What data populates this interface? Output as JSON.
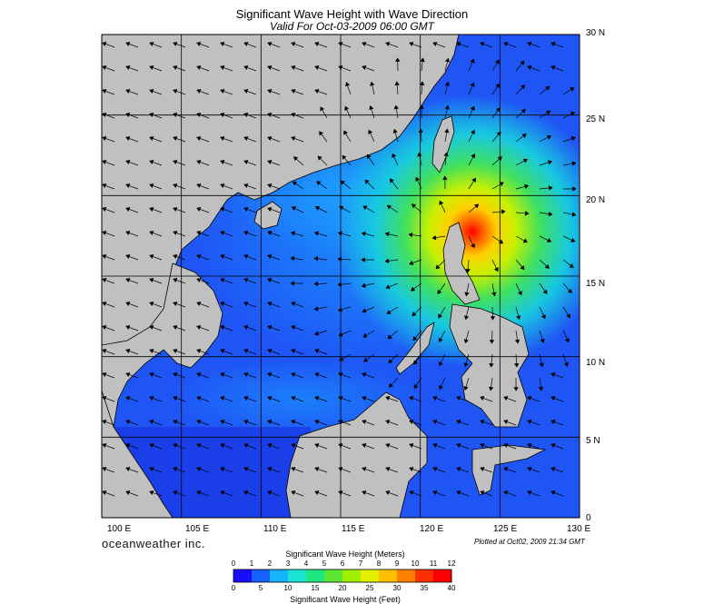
{
  "header": {
    "title": "Significant Wave Height with Wave Direction",
    "subtitle": "Valid For Oct-03-2009 06:00 GMT"
  },
  "map": {
    "lon_range": [
      100,
      130
    ],
    "lat_range": [
      0,
      30
    ],
    "lat_labels": [
      "30 N",
      "25 N",
      "20 N",
      "15 N",
      "10 N",
      "5 N",
      "0"
    ],
    "lon_labels": [
      "100 E",
      "105 E",
      "110 E",
      "115 E",
      "120 E",
      "125 E",
      "130 E"
    ],
    "storm_center": {
      "lon": 122.5,
      "lat": 18.0
    },
    "land_color": "#c0c0c0"
  },
  "footer": {
    "brand": "oceanweather inc.",
    "plotted": "Plotted at Oct02, 2009 21:34 GMT"
  },
  "legend": {
    "title_meters": "Significant Wave Height (Meters)",
    "title_feet": "Significant Wave Height (Feet)",
    "meters_ticks": [
      "0",
      "1",
      "2",
      "3",
      "4",
      "5",
      "6",
      "7",
      "8",
      "9",
      "10",
      "11",
      "12"
    ],
    "feet_ticks": [
      "0",
      "5",
      "10",
      "15",
      "20",
      "25",
      "30",
      "35",
      "40"
    ],
    "colors": [
      "#1a0dff",
      "#1560ff",
      "#14b4ff",
      "#18e6d2",
      "#20e680",
      "#5ae632",
      "#a0f000",
      "#e0f000",
      "#ffc000",
      "#ff8000",
      "#ff3000",
      "#ff0000"
    ]
  }
}
